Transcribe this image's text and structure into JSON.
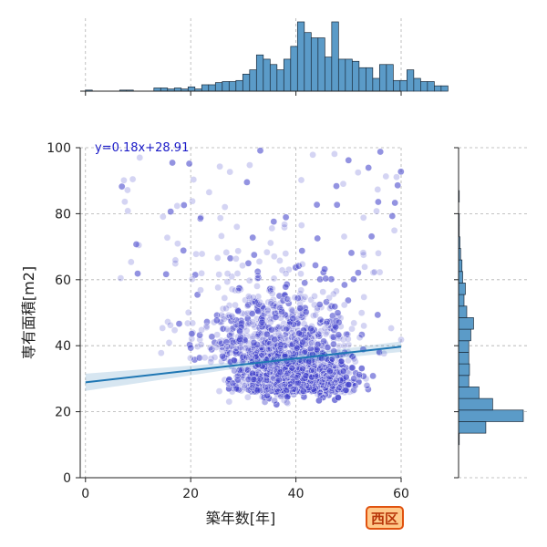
{
  "chart_data": {
    "type": "scatter",
    "xlabel": "築年数[年]",
    "ylabel": "専有面積[m2]",
    "xlim": [
      -1,
      60
    ],
    "ylim": [
      0,
      100
    ],
    "x_ticks": [
      0,
      20,
      40,
      60
    ],
    "y_ticks": [
      0,
      20,
      40,
      60,
      80,
      100
    ],
    "grid": true,
    "regression": {
      "label": "y=0.18x+28.91",
      "slope": 0.18,
      "intercept": 28.91
    },
    "top_histogram": {
      "variable": "築年数[年]",
      "bin_width": 1.3,
      "start": 0,
      "counts": [
        1,
        0,
        0,
        0,
        0,
        1,
        1,
        0,
        0,
        0,
        3,
        3,
        2,
        3,
        2,
        4,
        2,
        6,
        6,
        8,
        9,
        9,
        10,
        16,
        20,
        34,
        30,
        25,
        20,
        30,
        42,
        65,
        55,
        50,
        50,
        32,
        65,
        30,
        30,
        28,
        22,
        22,
        12,
        25,
        25,
        10,
        10,
        20,
        12,
        9,
        9,
        5,
        5
      ]
    },
    "right_histogram": {
      "variable": "専有面積[m2]",
      "bin_width": 3.5,
      "start": 10,
      "counts": [
        1,
        40,
        95,
        50,
        30,
        15,
        16,
        15,
        15,
        18,
        22,
        12,
        8,
        10,
        6,
        5,
        3,
        2,
        1,
        1,
        0,
        1
      ]
    },
    "scatter_summary": "dense cloud of about 2000 listings concentrated at 25–55 years and 15–40 m2, sparse points up to 100 m2",
    "colors": {
      "points": "#3a3ac8",
      "histogram": "#5b9bc8",
      "regression": "#1f77b4",
      "annotation": "#1a1ac8"
    }
  },
  "badge": {
    "label": "西区",
    "fill": "#ffc98a",
    "border": "#e0520f"
  }
}
